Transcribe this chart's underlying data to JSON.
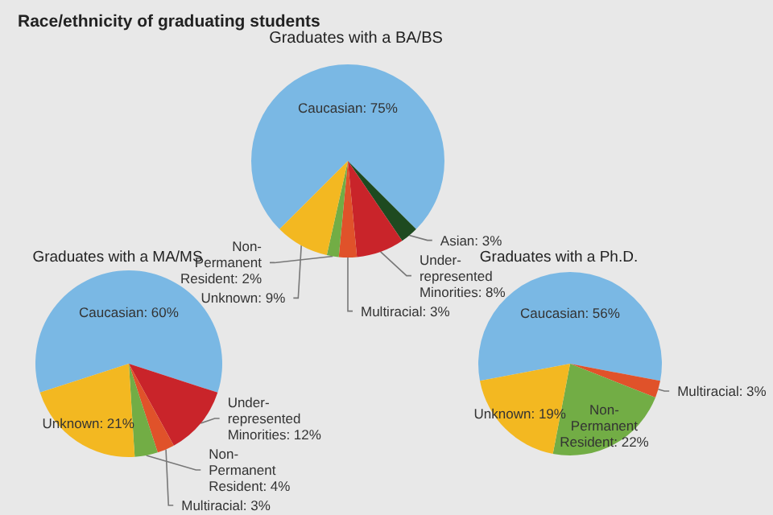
{
  "chart_data": [
    {
      "type": "pie",
      "title": "Race/ethnicity of graduating students",
      "subtitle": "Graduates with a BA/BS",
      "categories": [
        "Caucasian",
        "Asian",
        "Under-\nrepresented\nMinorities",
        "Multiracial",
        "Non-\nPermanent\nResident",
        "Unknown"
      ],
      "values": [
        75,
        3,
        8,
        3,
        2,
        9
      ],
      "value_labels": [
        "75%",
        "3%",
        "8%",
        "3%",
        "2%",
        "9%"
      ],
      "colors": [
        "#7ab8e4",
        "#1e4a20",
        "#c9242a",
        "#e0522a",
        "#72ad45",
        "#f3b821"
      ],
      "legend": false
    },
    {
      "type": "pie",
      "title": "Graduates with a MA/MS",
      "categories": [
        "Caucasian",
        "Under-\nrepresented\nMinorities",
        "Multiracial",
        "Non-\nPermanent\nResident",
        "Unknown"
      ],
      "values": [
        60,
        12,
        3,
        4,
        21
      ],
      "value_labels": [
        "60%",
        "12%",
        "3%",
        "4%",
        "21%"
      ],
      "colors": [
        "#7ab8e4",
        "#c9242a",
        "#e0522a",
        "#72ad45",
        "#f3b821"
      ],
      "legend": false
    },
    {
      "type": "pie",
      "title": "Graduates with a Ph.D.",
      "categories": [
        "Caucasian",
        "Multiracial",
        "Non-\nPermanent\nResident",
        "Unknown"
      ],
      "values": [
        56,
        3,
        22,
        19
      ],
      "value_labels": [
        "56%",
        "3%",
        "22%",
        "19%"
      ],
      "colors": [
        "#7ab8e4",
        "#e0522a",
        "#72ad45",
        "#f3b821"
      ],
      "legend": false
    }
  ]
}
